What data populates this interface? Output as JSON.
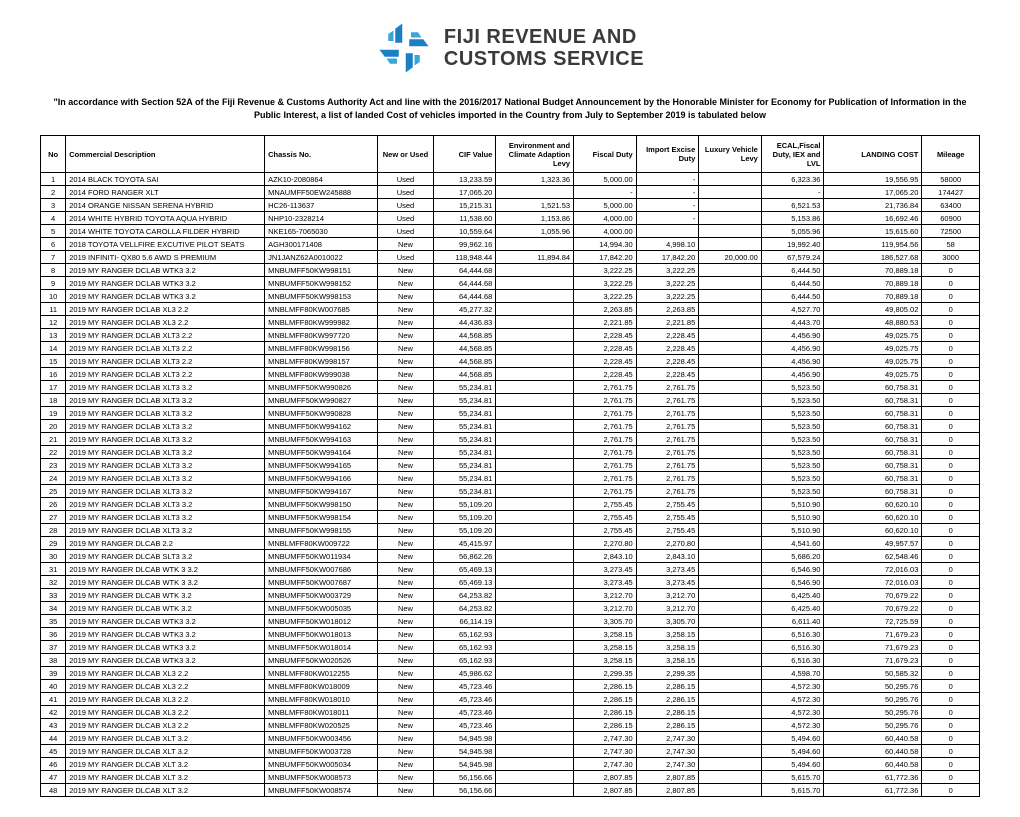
{
  "logo": {
    "line1": "FIJI REVENUE AND",
    "line2": "CUSTOMS SERVICE",
    "text_color": "#3a3a3a",
    "icon_colors": [
      "#1b7fc1",
      "#3aa5d8",
      "#7fc8e8"
    ]
  },
  "intro_text": "\"In accordance with Section 52A of the Fiji Revenue & Customs Authority Act and line with the 2016/2017 National Budget Announcement by the Honorable Minister for Economy for Publication of Information in the Public Interest, a list of landed Cost of vehicles imported in the Country from July to September 2019 is tabulated below",
  "columns": [
    "No",
    "Commercial Description",
    "Chassis No.",
    "New or Used",
    "CIF Value",
    "Environment and Climate Adaption Levy",
    "Fiscal Duty",
    "Import Excise Duty",
    "Luxury Vehicle Levy",
    "ECAL,Fiscal Duty, IEX and LVL",
    "LANDING COST",
    "Mileage"
  ],
  "rows": [
    [
      "1",
      "2014 BLACK TOYOTA SAI",
      "AZK10-2080864",
      "Used",
      "13,233.59",
      "1,323.36",
      "5,000.00",
      "-",
      "",
      "6,323.36",
      "19,556.95",
      "58000"
    ],
    [
      "2",
      "2014 FORD  RANGER  XLT",
      "MNAUMFF50EW245888",
      "Used",
      "17,065.20",
      "",
      "-",
      "-",
      "",
      "-",
      "17,065.20",
      "174427"
    ],
    [
      "3",
      "2014 ORANGE NISSAN SERENA HYBRID",
      "HC26-113637",
      "Used",
      "15,215.31",
      "1,521.53",
      "5,000.00",
      "-",
      "",
      "6,521.53",
      "21,736.84",
      "63400"
    ],
    [
      "4",
      "2014 WHITE HYBRID TOYOTA AQUA HYBRID",
      "NHP10-2328214",
      "Used",
      "11,538.60",
      "1,153.86",
      "4,000.00",
      "-",
      "",
      "5,153.86",
      "16,692.46",
      "60900"
    ],
    [
      "5",
      "2014 WHITE TOYOTA CAROLLA FILDER HYBRID",
      "NKE165-7065030",
      "Used",
      "10,559.64",
      "1,055.96",
      "4,000.00",
      "",
      "",
      "5,055.96",
      "15,615.60",
      "72500"
    ],
    [
      "6",
      "2018 TOYOTA VELLFIRE EXCUTIVE PILOT SEATS",
      "AGH300171408",
      "New",
      "99,962.16",
      "",
      "14,994.30",
      "4,998.10",
      "",
      "19,992.40",
      "119,954.56",
      "58"
    ],
    [
      "7",
      "2019 INFINITI- QX80 5.6 AWD S PREMIUM",
      "JN1JANZ62A0010022",
      "Used",
      "118,948.44",
      "11,894.84",
      "17,842.20",
      "17,842.20",
      "20,000.00",
      "67,579.24",
      "186,527.68",
      "3000"
    ],
    [
      "8",
      "2019 MY RANGER DCLAB WTK3 3.2",
      "MNBUMFF50KW998151",
      "New",
      "64,444.68",
      "",
      "3,222.25",
      "3,222.25",
      "",
      "6,444.50",
      "70,889.18",
      "0"
    ],
    [
      "9",
      "2019 MY RANGER DCLAB WTK3 3.2",
      "MNBUMFF50KW998152",
      "New",
      "64,444.68",
      "",
      "3,222.25",
      "3,222.25",
      "",
      "6,444.50",
      "70,889.18",
      "0"
    ],
    [
      "10",
      "2019 MY RANGER DCLAB WTK3 3.2",
      "MNBUMFF50KW998153",
      "New",
      "64,444.68",
      "",
      "3,222.25",
      "3,222.25",
      "",
      "6,444.50",
      "70,889.18",
      "0"
    ],
    [
      "11",
      "2019 MY RANGER DCLAB XL3 2.2",
      "MNBLMFF80KW007685",
      "New",
      "45,277.32",
      "",
      "2,263.85",
      "2,263.85",
      "",
      "4,527.70",
      "49,805.02",
      "0"
    ],
    [
      "12",
      "2019 MY RANGER DCLAB XL3 2.2",
      "MNBLMFF80KW999982",
      "New",
      "44,436.83",
      "",
      "2,221.85",
      "2,221.85",
      "",
      "4,443.70",
      "48,880.53",
      "0"
    ],
    [
      "13",
      "2019 MY RANGER DCLAB XLT3 2.2",
      "MNBLMFF80KW997720",
      "New",
      "44,568.85",
      "",
      "2,228.45",
      "2,228.45",
      "",
      "4,456.90",
      "49,025.75",
      "0"
    ],
    [
      "14",
      "2019 MY RANGER DCLAB XLT3 2.2",
      "MNBLMFF80KW998156",
      "New",
      "44,568.85",
      "",
      "2,228.45",
      "2,228.45",
      "",
      "4,456.90",
      "49,025.75",
      "0"
    ],
    [
      "15",
      "2019 MY RANGER DCLAB XLT3 2.2",
      "MNBLMFF80KW998157",
      "New",
      "44,568.85",
      "",
      "2,228.45",
      "2,228.45",
      "",
      "4,456.90",
      "49,025.75",
      "0"
    ],
    [
      "16",
      "2019 MY RANGER DCLAB XLT3 2.2",
      "MNBLMFF80KW999038",
      "New",
      "44,568.85",
      "",
      "2,228.45",
      "2,228.45",
      "",
      "4,456.90",
      "49,025.75",
      "0"
    ],
    [
      "17",
      "2019 MY RANGER DCLAB XLT3 3.2",
      "MNBUMFF50KW990826",
      "New",
      "55,234.81",
      "",
      "2,761.75",
      "2,761.75",
      "",
      "5,523.50",
      "60,758.31",
      "0"
    ],
    [
      "18",
      "2019 MY RANGER DCLAB XLT3 3.2",
      "MNBUMFF50KW990827",
      "New",
      "55,234.81",
      "",
      "2,761.75",
      "2,761.75",
      "",
      "5,523.50",
      "60,758.31",
      "0"
    ],
    [
      "19",
      "2019 MY RANGER DCLAB XLT3 3.2",
      "MNBUMFF50KW990828",
      "New",
      "55,234.81",
      "",
      "2,761.75",
      "2,761.75",
      "",
      "5,523.50",
      "60,758.31",
      "0"
    ],
    [
      "20",
      "2019 MY RANGER DCLAB XLT3 3.2",
      "MNBUMFF50KW994162",
      "New",
      "55,234.81",
      "",
      "2,761.75",
      "2,761.75",
      "",
      "5,523.50",
      "60,758.31",
      "0"
    ],
    [
      "21",
      "2019 MY RANGER DCLAB XLT3 3.2",
      "MNBUMFF50KW994163",
      "New",
      "55,234.81",
      "",
      "2,761.75",
      "2,761.75",
      "",
      "5,523.50",
      "60,758.31",
      "0"
    ],
    [
      "22",
      "2019 MY RANGER DCLAB XLT3 3.2",
      "MNBUMFF50KW994164",
      "New",
      "55,234.81",
      "",
      "2,761.75",
      "2,761.75",
      "",
      "5,523.50",
      "60,758.31",
      "0"
    ],
    [
      "23",
      "2019 MY RANGER DCLAB XLT3 3.2",
      "MNBUMFF50KW994165",
      "New",
      "55,234.81",
      "",
      "2,761.75",
      "2,761.75",
      "",
      "5,523.50",
      "60,758.31",
      "0"
    ],
    [
      "24",
      "2019 MY RANGER DCLAB XLT3 3.2",
      "MNBUMFF50KW994166",
      "New",
      "55,234.81",
      "",
      "2,761.75",
      "2,761.75",
      "",
      "5,523.50",
      "60,758.31",
      "0"
    ],
    [
      "25",
      "2019 MY RANGER DCLAB XLT3 3.2",
      "MNBUMFF50KW994167",
      "New",
      "55,234.81",
      "",
      "2,761.75",
      "2,761.75",
      "",
      "5,523.50",
      "60,758.31",
      "0"
    ],
    [
      "26",
      "2019 MY RANGER DCLAB XLT3 3.2",
      "MNBUMFF50KW998150",
      "New",
      "55,109.20",
      "",
      "2,755.45",
      "2,755.45",
      "",
      "5,510.90",
      "60,620.10",
      "0"
    ],
    [
      "27",
      "2019 MY RANGER DCLAB XLT3 3.2",
      "MNBUMFF50KW998154",
      "New",
      "55,109.20",
      "",
      "2,755.45",
      "2,755.45",
      "",
      "5,510.90",
      "60,620.10",
      "0"
    ],
    [
      "28",
      "2019 MY RANGER DCLAB XLT3 3.2",
      "MNBUMFF50KW998155",
      "New",
      "55,109.20",
      "",
      "2,755.45",
      "2,755.45",
      "",
      "5,510.90",
      "60,620.10",
      "0"
    ],
    [
      "29",
      "2019 MY RANGER DLCAB 2.2",
      "MNBLMFF80KW009722",
      "New",
      "45,415.97",
      "",
      "2,270.80",
      "2,270.80",
      "",
      "4,541.60",
      "49,957.57",
      "0"
    ],
    [
      "30",
      "2019 MY RANGER DLCAB SLT3 3.2",
      "MNBUMFF50KW011934",
      "New",
      "56,862.26",
      "",
      "2,843.10",
      "2,843.10",
      "",
      "5,686.20",
      "62,548.46",
      "0"
    ],
    [
      "31",
      "2019 MY RANGER DLCAB WTK 3 3.2",
      "MNBUMFF50KW007686",
      "New",
      "65,469.13",
      "",
      "3,273.45",
      "3,273.45",
      "",
      "6,546.90",
      "72,016.03",
      "0"
    ],
    [
      "32",
      "2019 MY RANGER DLCAB WTK 3 3.2",
      "MNBUMFF50KW007687",
      "New",
      "65,469.13",
      "",
      "3,273.45",
      "3,273.45",
      "",
      "6,546.90",
      "72,016.03",
      "0"
    ],
    [
      "33",
      "2019 MY RANGER DLCAB WTK 3.2",
      "MNBUMFF50KW003729",
      "New",
      "64,253.82",
      "",
      "3,212.70",
      "3,212.70",
      "",
      "6,425.40",
      "70,679.22",
      "0"
    ],
    [
      "34",
      "2019 MY RANGER DLCAB WTK 3.2",
      "MNBUMFF50KW005035",
      "New",
      "64,253.82",
      "",
      "3,212.70",
      "3,212.70",
      "",
      "6,425.40",
      "70,679.22",
      "0"
    ],
    [
      "35",
      "2019 MY RANGER DLCAB WTK3 3.2",
      "MNBUMFF50KW018012",
      "New",
      "66,114.19",
      "",
      "3,305.70",
      "3,305.70",
      "",
      "6,611.40",
      "72,725.59",
      "0"
    ],
    [
      "36",
      "2019 MY RANGER DLCAB WTK3 3.2",
      "MNBUMFF50KW018013",
      "New",
      "65,162.93",
      "",
      "3,258.15",
      "3,258.15",
      "",
      "6,516.30",
      "71,679.23",
      "0"
    ],
    [
      "37",
      "2019 MY RANGER DLCAB WTK3 3.2",
      "MNBUMFF50KW018014",
      "New",
      "65,162.93",
      "",
      "3,258.15",
      "3,258.15",
      "",
      "6,516.30",
      "71,679.23",
      "0"
    ],
    [
      "38",
      "2019 MY RANGER DLCAB WTK3 3.2",
      "MNBUMFF50KW020526",
      "New",
      "65,162.93",
      "",
      "3,258.15",
      "3,258.15",
      "",
      "6,516.30",
      "71,679.23",
      "0"
    ],
    [
      "39",
      "2019 MY RANGER DLCAB XL3 2.2",
      "MNBLMFF80KW012255",
      "New",
      "45,986.62",
      "",
      "2,299.35",
      "2,299.35",
      "",
      "4,598.70",
      "50,585.32",
      "0"
    ],
    [
      "40",
      "2019 MY RANGER DLCAB XL3 2.2",
      "MNBLMFF80KW018009",
      "New",
      "45,723.46",
      "",
      "2,286.15",
      "2,286.15",
      "",
      "4,572.30",
      "50,295.76",
      "0"
    ],
    [
      "41",
      "2019 MY RANGER DLCAB XL3 2.2",
      "MNBLMFF80KW018010",
      "New",
      "45,723.46",
      "",
      "2,286.15",
      "2,286.15",
      "",
      "4,572.30",
      "50,295.76",
      "0"
    ],
    [
      "42",
      "2019 MY RANGER DLCAB XL3 2.2",
      "MNBLMFF80KW018011",
      "New",
      "45,723.46",
      "",
      "2,286.15",
      "2,286.15",
      "",
      "4,572.30",
      "50,295.76",
      "0"
    ],
    [
      "43",
      "2019 MY RANGER DLCAB XL3 2.2",
      "MNBLMFF80KW020525",
      "New",
      "45,723.46",
      "",
      "2,286.15",
      "2,286.15",
      "",
      "4,572.30",
      "50,295.76",
      "0"
    ],
    [
      "44",
      "2019 MY RANGER DLCAB XLT 3.2",
      "MNBUMFF50KW003456",
      "New",
      "54,945.98",
      "",
      "2,747.30",
      "2,747.30",
      "",
      "5,494.60",
      "60,440.58",
      "0"
    ],
    [
      "45",
      "2019 MY RANGER DLCAB XLT 3.2",
      "MNBUMFF50KW003728",
      "New",
      "54,945.98",
      "",
      "2,747.30",
      "2,747.30",
      "",
      "5,494.60",
      "60,440.58",
      "0"
    ],
    [
      "46",
      "2019 MY RANGER DLCAB XLT 3.2",
      "MNBUMFF50KW005034",
      "New",
      "54,945.98",
      "",
      "2,747.30",
      "2,747.30",
      "",
      "5,494.60",
      "60,440.58",
      "0"
    ],
    [
      "47",
      "2019 MY RANGER DLCAB XLT 3.2",
      "MNBUMFF50KW008573",
      "New",
      "56,156.66",
      "",
      "2,807.85",
      "2,807.85",
      "",
      "5,615.70",
      "61,772.36",
      "0"
    ],
    [
      "48",
      "2019 MY RANGER DLCAB XLT 3.2",
      "MNBUMFF50KW008574",
      "New",
      "56,156.66",
      "",
      "2,807.85",
      "2,807.85",
      "",
      "5,615.70",
      "61,772.36",
      "0"
    ]
  ],
  "col_classes": [
    "col-no",
    "col-desc",
    "col-chassis",
    "col-nu",
    "col-num",
    "col-env",
    "col-num",
    "col-num",
    "col-num",
    "col-num",
    "col-land",
    "col-mile"
  ]
}
